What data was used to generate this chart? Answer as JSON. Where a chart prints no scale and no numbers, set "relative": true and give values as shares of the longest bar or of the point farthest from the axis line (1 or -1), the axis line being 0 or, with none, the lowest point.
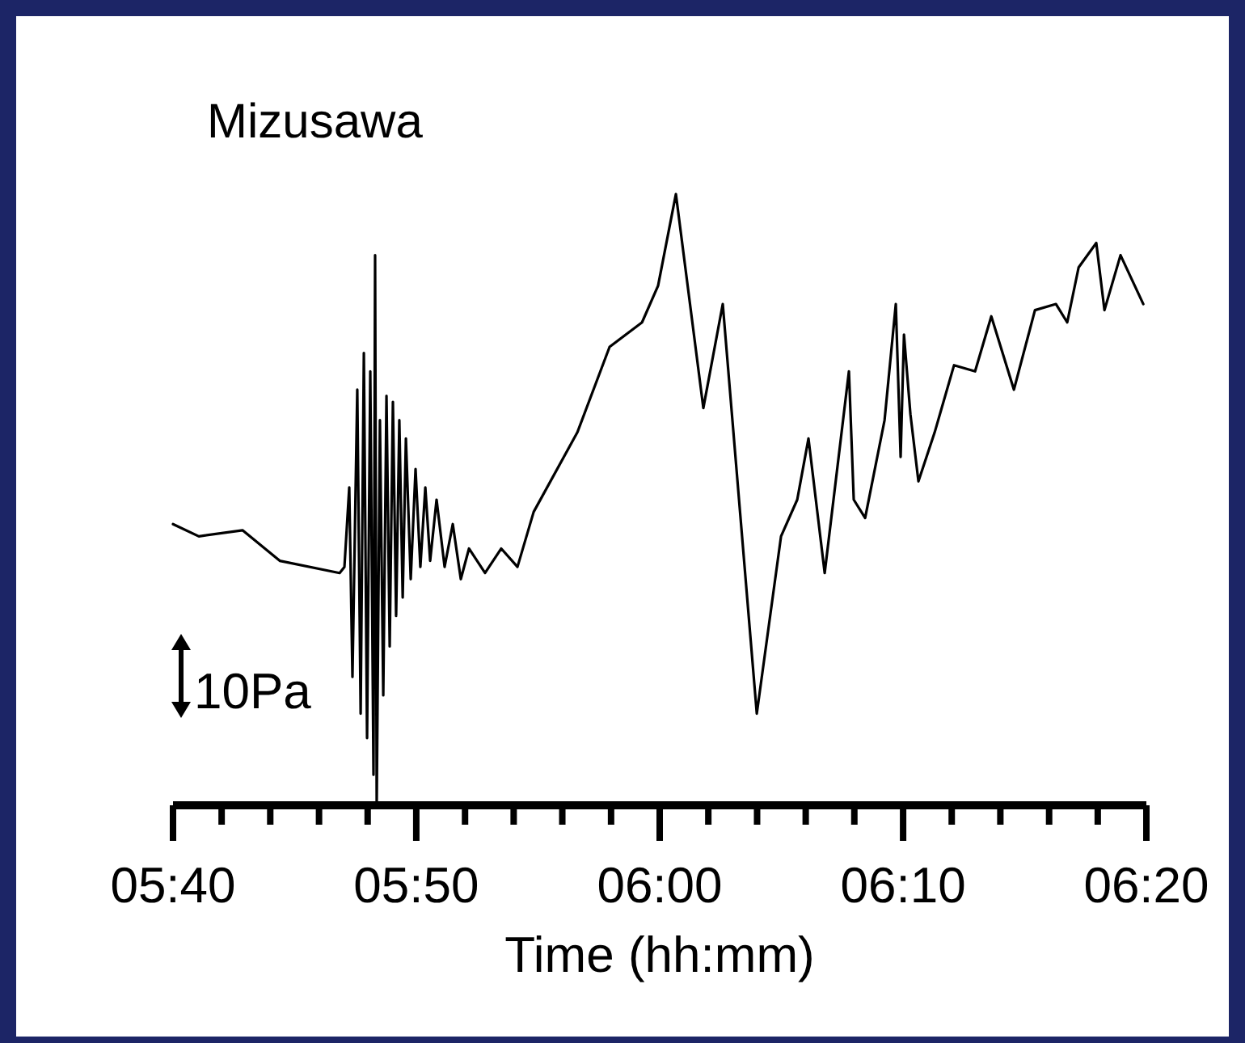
{
  "chart_data": {
    "type": "line",
    "title": "Mizusawa",
    "xlabel": "Time (hh:mm)",
    "relative": true,
    "annotations": [
      "10Pa"
    ],
    "xlim": [
      5.6667,
      6.3333
    ],
    "xticks": [
      {
        "value": 5.6667,
        "label": "05:40"
      },
      {
        "value": 5.7,
        "label": null
      },
      {
        "value": 5.7333,
        "label": null
      },
      {
        "value": 5.7667,
        "label": null
      },
      {
        "value": 5.8,
        "label": null
      },
      {
        "value": 5.8333,
        "label": "05:50"
      },
      {
        "value": 5.8667,
        "label": null
      },
      {
        "value": 5.9,
        "label": null
      },
      {
        "value": 5.9333,
        "label": null
      },
      {
        "value": 5.9667,
        "label": null
      },
      {
        "value": 6,
        "label": "06:00"
      },
      {
        "value": 6.0333,
        "label": null
      },
      {
        "value": 6.0667,
        "label": null
      },
      {
        "value": 6.1,
        "label": null
      },
      {
        "value": 6.1333,
        "label": null
      },
      {
        "value": 6.1667,
        "label": "06:10"
      },
      {
        "value": 6.2,
        "label": null
      },
      {
        "value": 6.2333,
        "label": null
      },
      {
        "value": 6.2667,
        "label": null
      },
      {
        "value": 6.3,
        "label": null
      },
      {
        "value": 6.3333,
        "label": "06:20"
      }
    ],
    "x": [
      5.6667,
      5.6844,
      5.7143,
      5.7398,
      5.7808,
      5.7841,
      5.7874,
      5.7896,
      5.7929,
      5.7952,
      5.7974,
      5.7996,
      5.8018,
      5.804,
      5.8051,
      5.8062,
      5.8084,
      5.8107,
      5.8129,
      5.8151,
      5.8173,
      5.8195,
      5.8217,
      5.824,
      5.8262,
      5.8295,
      5.8328,
      5.8361,
      5.8395,
      5.8428,
      5.8472,
      5.8527,
      5.8583,
      5.8638,
      5.8694,
      5.8804,
      5.8915,
      5.9026,
      5.9137,
      5.9436,
      5.9657,
      5.9879,
      5.9989,
      6.0111,
      6.0299,
      6.0432,
      6.0665,
      6.0831,
      6.0942,
      6.1019,
      6.113,
      6.1296,
      6.1329,
      6.1407,
      6.154,
      6.1617,
      6.165,
      6.1673,
      6.1717,
      6.1772,
      6.1883,
      6.2016,
      6.216,
      6.2271,
      6.2426,
      6.257,
      6.2714,
      6.2791,
      6.2869,
      6.299,
      6.3046,
      6.3156,
      6.3312
    ],
    "series": [
      {
        "color": "#000000",
        "values": [
          0.46,
          0.44,
          0.45,
          0.4,
          0.38,
          0.39,
          0.52,
          0.21,
          0.68,
          0.15,
          0.74,
          0.11,
          0.71,
          0.05,
          0.9,
          0,
          0.63,
          0.18,
          0.67,
          0.26,
          0.66,
          0.31,
          0.63,
          0.34,
          0.6,
          0.37,
          0.55,
          0.39,
          0.52,
          0.4,
          0.5,
          0.39,
          0.46,
          0.37,
          0.42,
          0.38,
          0.42,
          0.39,
          0.48,
          0.61,
          0.75,
          0.79,
          0.85,
          1,
          0.65,
          0.82,
          0.15,
          0.44,
          0.5,
          0.6,
          0.38,
          0.71,
          0.5,
          0.47,
          0.63,
          0.82,
          0.57,
          0.77,
          0.64,
          0.53,
          0.61,
          0.72,
          0.71,
          0.8,
          0.68,
          0.81,
          0.82,
          0.79,
          0.88,
          0.92,
          0.81,
          0.9,
          0.82
        ]
      }
    ]
  }
}
